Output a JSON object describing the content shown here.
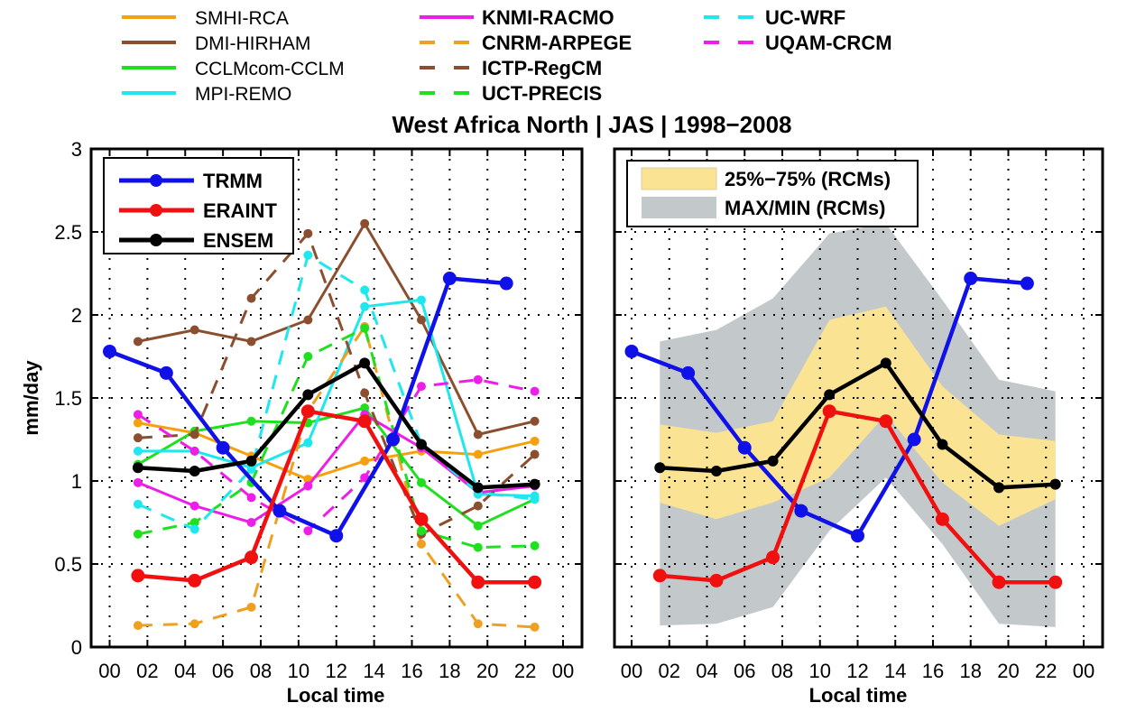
{
  "chart_data": [
    {
      "type": "line",
      "panel": "left",
      "title": "West Africa North | JAS | 1998−2008",
      "xlabel": "Local time",
      "ylabel": "mm/day",
      "xlim": [
        0,
        24
      ],
      "ylim": [
        0,
        3
      ],
      "grid": true,
      "x_tick_values": [
        0,
        2,
        4,
        6,
        8,
        10,
        12,
        14,
        16,
        18,
        20,
        22,
        24
      ],
      "x_tick_labels": [
        "00",
        "02",
        "04",
        "06",
        "08",
        "10",
        "12",
        "14",
        "16",
        "18",
        "20",
        "22",
        "00"
      ],
      "y_tick_values": [
        0,
        0.5,
        1,
        1.5,
        2,
        2.5,
        3
      ],
      "y_tick_labels": [
        "0",
        "0.5",
        "1",
        "1.5",
        "2",
        "2.5",
        "3"
      ],
      "inner_legend_position": "top-left",
      "series": [
        {
          "name": "SMHI-RCA",
          "color": "#f5a00f",
          "style": "solid",
          "group": "rcm",
          "x": [
            1.5,
            4.5,
            7.5,
            10.5,
            13.5,
            16.5,
            19.5,
            22.5
          ],
          "values": [
            1.35,
            1.29,
            1.15,
            1.01,
            1.12,
            1.18,
            1.16,
            1.24
          ]
        },
        {
          "name": "DMI-HIRHAM",
          "color": "#8b4f2f",
          "style": "solid",
          "group": "rcm",
          "x": [
            1.5,
            4.5,
            7.5,
            10.5,
            13.5,
            16.5,
            19.5,
            22.5
          ],
          "values": [
            1.84,
            1.91,
            1.84,
            1.97,
            2.55,
            1.97,
            1.28,
            1.36
          ]
        },
        {
          "name": "CCLMcom-CCLM",
          "color": "#1fe01f",
          "style": "solid",
          "group": "rcm",
          "x": [
            1.5,
            4.5,
            7.5,
            10.5,
            13.5,
            16.5,
            19.5,
            22.5
          ],
          "values": [
            1.1,
            1.3,
            1.36,
            1.35,
            1.44,
            0.99,
            0.73,
            0.89
          ]
        },
        {
          "name": "MPI-REMO",
          "color": "#1ee8ee",
          "style": "solid",
          "group": "rcm",
          "x": [
            1.5,
            4.5,
            7.5,
            10.5,
            13.5,
            16.5,
            19.5,
            22.5
          ],
          "values": [
            1.18,
            1.18,
            1.08,
            1.23,
            2.05,
            2.09,
            0.92,
            0.91
          ]
        },
        {
          "name": "KNMI-RACMO",
          "color": "#ee1ee8",
          "style": "solid",
          "group": "rcm",
          "x": [
            1.5,
            4.5,
            7.5,
            10.5,
            13.5,
            16.5,
            19.5,
            22.5
          ],
          "values": [
            0.99,
            0.85,
            0.75,
            0.97,
            1.4,
            1.2,
            0.93,
            0.97
          ]
        },
        {
          "name": "CNRM-ARPEGE",
          "color": "#f0a020",
          "style": "dashed",
          "group": "rcm",
          "x": [
            1.5,
            4.5,
            7.5,
            10.5,
            13.5,
            16.5,
            19.5,
            22.5
          ],
          "values": [
            0.13,
            0.14,
            0.24,
            1.42,
            1.93,
            0.62,
            0.14,
            0.12
          ]
        },
        {
          "name": "ICTP-RegCM",
          "color": "#8b4f2f",
          "style": "dashed",
          "group": "rcm",
          "x": [
            1.5,
            4.5,
            7.5,
            10.5,
            13.5,
            16.5,
            19.5,
            22.5
          ],
          "values": [
            1.26,
            1.28,
            2.1,
            2.49,
            1.53,
            0.68,
            0.85,
            1.16
          ]
        },
        {
          "name": "UCT-PRECIS",
          "color": "#1fe01f",
          "style": "dashed",
          "group": "rcm",
          "x": [
            1.5,
            4.5,
            7.5,
            10.5,
            13.5,
            16.5,
            19.5,
            22.5
          ],
          "values": [
            0.68,
            0.75,
            0.99,
            1.75,
            1.92,
            0.7,
            0.6,
            0.61
          ]
        },
        {
          "name": "UC-WRF",
          "color": "#1ee8ee",
          "style": "dashed",
          "group": "rcm",
          "x": [
            1.5,
            4.5,
            7.5,
            10.5,
            13.5,
            16.5,
            19.5,
            22.5
          ],
          "values": [
            0.86,
            0.71,
            1.07,
            2.36,
            2.15,
            1.22,
            0.93,
            0.89
          ]
        },
        {
          "name": "UQAM-CRCM",
          "color": "#ee1ee8",
          "style": "dashed",
          "group": "rcm",
          "x": [
            1.5,
            4.5,
            7.5,
            10.5,
            13.5,
            16.5,
            19.5,
            22.5
          ],
          "values": [
            1.4,
            1.18,
            0.9,
            0.7,
            1.02,
            1.57,
            1.61,
            1.54
          ]
        },
        {
          "name": "TRMM",
          "color": "#1010e8",
          "style": "bold",
          "group": "ref",
          "x": [
            0,
            3,
            6,
            9,
            12,
            15,
            18,
            21
          ],
          "values": [
            1.78,
            1.65,
            1.2,
            0.82,
            0.67,
            1.25,
            2.22,
            2.19
          ]
        },
        {
          "name": "ERAINT",
          "color": "#f01010",
          "style": "bold",
          "group": "ref",
          "x": [
            1.5,
            4.5,
            7.5,
            10.5,
            13.5,
            16.5,
            19.5,
            22.5
          ],
          "values": [
            0.43,
            0.4,
            0.54,
            1.42,
            1.36,
            0.77,
            0.39,
            0.39
          ]
        },
        {
          "name": "ENSEM",
          "color": "#000000",
          "style": "bold",
          "group": "ref",
          "x": [
            1.5,
            4.5,
            7.5,
            10.5,
            13.5,
            16.5,
            19.5,
            22.5
          ],
          "values": [
            1.08,
            1.06,
            1.12,
            1.52,
            1.71,
            1.22,
            0.96,
            0.98
          ]
        }
      ]
    },
    {
      "type": "area",
      "panel": "right",
      "xlabel": "Local time",
      "xlim": [
        0,
        24
      ],
      "ylim": [
        0,
        3
      ],
      "grid": true,
      "x_tick_values": [
        0,
        2,
        4,
        6,
        8,
        10,
        12,
        14,
        16,
        18,
        20,
        22,
        24
      ],
      "x_tick_labels": [
        "00",
        "02",
        "04",
        "06",
        "08",
        "10",
        "12",
        "14",
        "16",
        "18",
        "20",
        "22",
        "00"
      ],
      "inner_legend_position": "top-left",
      "bands": [
        {
          "name": "MAX/MIN (RCMs)",
          "color": "#c3c9cb",
          "x": [
            1.5,
            4.5,
            7.5,
            10.5,
            13.5,
            16.5,
            19.5,
            22.5
          ],
          "upper": [
            1.84,
            1.91,
            2.1,
            2.49,
            2.55,
            2.09,
            1.61,
            1.54
          ],
          "lower": [
            0.13,
            0.14,
            0.24,
            0.7,
            1.02,
            0.62,
            0.14,
            0.12
          ]
        },
        {
          "name": "25%−75% (RCMs)",
          "color": "#fbe394",
          "x": [
            1.5,
            4.5,
            7.5,
            10.5,
            13.5,
            16.5,
            19.5,
            22.5
          ],
          "upper": [
            1.34,
            1.29,
            1.36,
            1.97,
            2.05,
            1.57,
            1.28,
            1.24
          ],
          "lower": [
            0.87,
            0.77,
            0.87,
            1.02,
            1.4,
            0.99,
            0.73,
            0.89
          ]
        }
      ],
      "series": [
        {
          "name": "TRMM",
          "color": "#1010e8",
          "x": [
            0,
            3,
            6,
            9,
            12,
            15,
            18,
            21
          ],
          "values": [
            1.78,
            1.65,
            1.2,
            0.82,
            0.67,
            1.25,
            2.22,
            2.19
          ]
        },
        {
          "name": "ERAINT",
          "color": "#f01010",
          "x": [
            1.5,
            4.5,
            7.5,
            10.5,
            13.5,
            16.5,
            19.5,
            22.5
          ],
          "values": [
            0.43,
            0.4,
            0.54,
            1.42,
            1.36,
            0.77,
            0.39,
            0.39
          ]
        },
        {
          "name": "ENSEM",
          "color": "#000000",
          "x": [
            1.5,
            4.5,
            7.5,
            10.5,
            13.5,
            16.5,
            19.5,
            22.5
          ],
          "values": [
            1.08,
            1.06,
            1.12,
            1.52,
            1.71,
            1.22,
            0.96,
            0.98
          ]
        }
      ]
    }
  ],
  "top_legend": {
    "columns": [
      [
        "SMHI-RCA",
        "DMI-HIRHAM",
        "CCLMcom-CCLM",
        "MPI-REMO"
      ],
      [
        "KNMI-RACMO",
        "CNRM-ARPEGE",
        "ICTP-RegCM",
        "UCT-PRECIS"
      ],
      [
        "UC-WRF",
        "UQAM-CRCM"
      ]
    ]
  }
}
